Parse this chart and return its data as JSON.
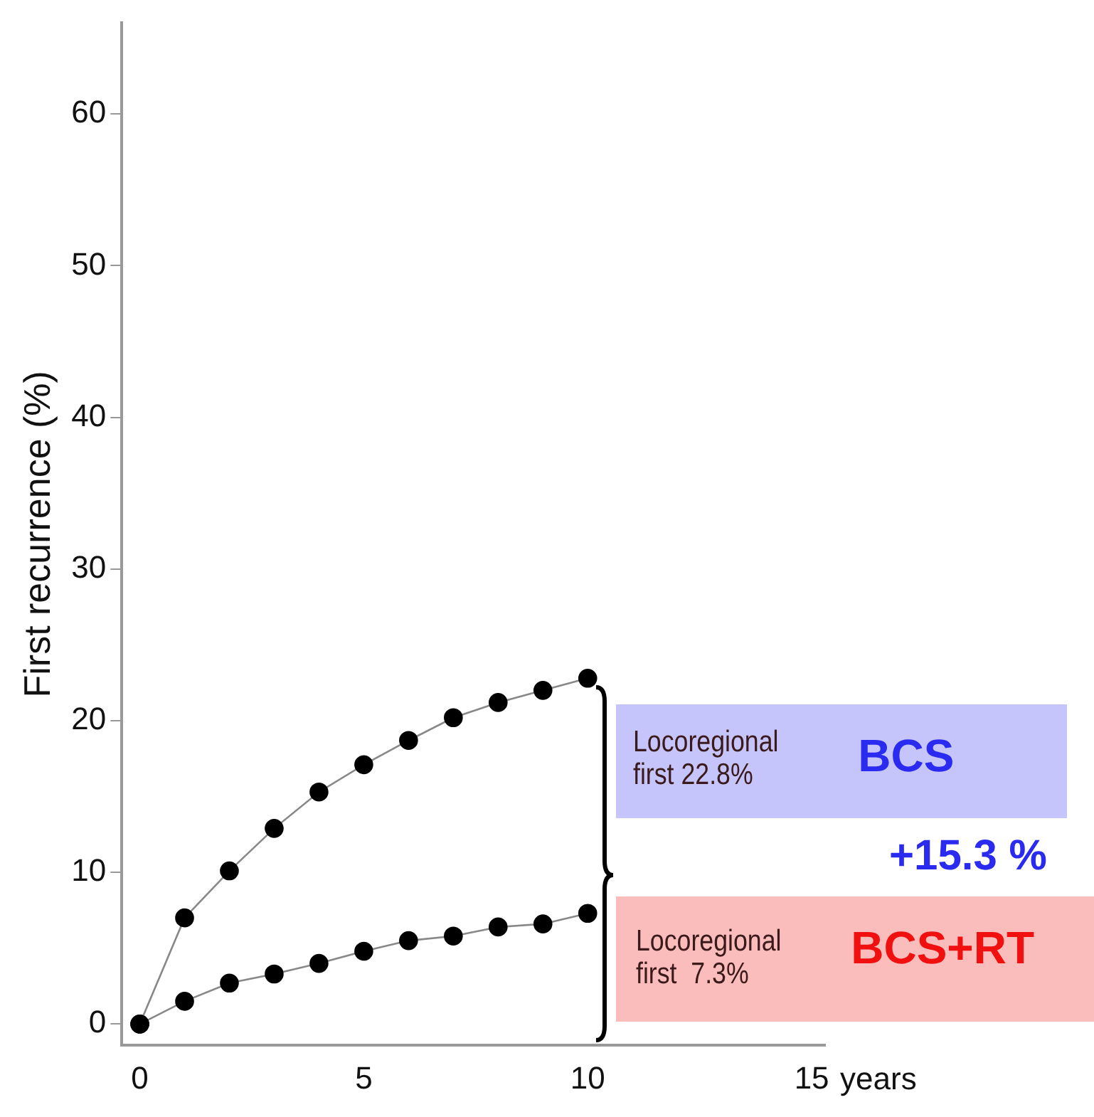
{
  "chart_data": {
    "type": "line",
    "ylabel": "First recurrence (%)",
    "xlabel": "years",
    "xlim": [
      -0.4,
      15.3
    ],
    "xticks": [
      0,
      5,
      10,
      15
    ],
    "ylim": [
      -1.4,
      66
    ],
    "yticks": [
      0,
      10,
      20,
      30,
      40,
      50,
      60
    ],
    "marker": "circle",
    "grid": false,
    "legend": false,
    "series": [
      {
        "name": "BCS",
        "color": "#000000",
        "x": [
          0,
          1,
          2,
          3,
          4,
          5,
          6,
          7,
          8,
          9,
          10
        ],
        "values": [
          0,
          7.0,
          10.1,
          12.9,
          15.3,
          17.1,
          18.7,
          20.2,
          21.2,
          22.0,
          22.8
        ]
      },
      {
        "name": "BCS+RT",
        "color": "#000000",
        "x": [
          0,
          1,
          2,
          3,
          4,
          5,
          6,
          7,
          8,
          9,
          10
        ],
        "values": [
          0,
          1.5,
          2.7,
          3.3,
          4.0,
          4.8,
          5.5,
          5.8,
          6.4,
          6.6,
          7.3
        ]
      }
    ],
    "annotations": [
      "Locoregional\nfirst 22.8%",
      "+15.3 %",
      "Locoregional\nfirst  7.3%"
    ]
  }
}
